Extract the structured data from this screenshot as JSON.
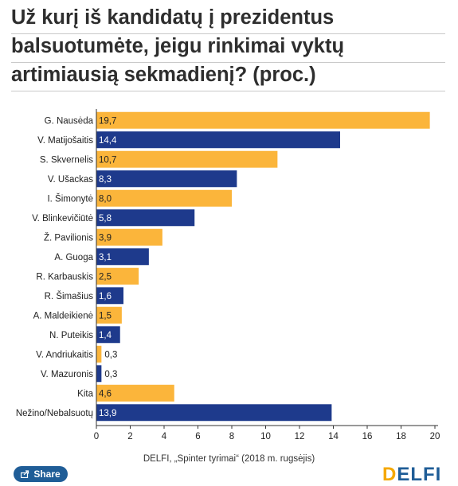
{
  "title_lines": [
    "Už kurį iš kandidatų į prezidentus",
    "balsuotumėte, jeigu rinkimai vyktų",
    "artimiausią sekmadienį? (proc.)"
  ],
  "source": "DELFI, „Spinter tyrimai“ (2018 m. rugsėjis)",
  "share_label": "Share",
  "logo": {
    "first": "D",
    "rest": "ELFI"
  },
  "colors": {
    "orange": "#fbb53b",
    "blue": "#1e3a8c"
  },
  "chart_data": {
    "type": "bar",
    "orientation": "horizontal",
    "categories": [
      "G. Nausėda",
      "V. Matijošaitis",
      "S. Skvernelis",
      "V. Ušackas",
      "I. Šimonytė",
      "V. Blinkevičiūtė",
      "Ž. Pavilionis",
      "A. Guoga",
      "R. Karbauskis",
      "R. Šimašius",
      "A. Maldeikienė",
      "N. Puteikis",
      "V. Andriukaitis",
      "V. Mazuronis",
      "Kita",
      "Nežino/Nebalsuotų"
    ],
    "values": [
      19.7,
      14.4,
      10.7,
      8.3,
      8.0,
      5.8,
      3.9,
      3.1,
      2.5,
      1.6,
      1.5,
      1.4,
      0.3,
      0.3,
      4.6,
      13.9
    ],
    "value_labels": [
      "19,7",
      "14,4",
      "10,7",
      "8,3",
      "8,0",
      "5,8",
      "3,9",
      "3,1",
      "2,5",
      "1,6",
      "1,5",
      "1,4",
      "0,3",
      "0,3",
      "4,6",
      "13,9"
    ],
    "bar_colors": [
      "orange",
      "blue",
      "orange",
      "blue",
      "orange",
      "blue",
      "orange",
      "blue",
      "orange",
      "blue",
      "orange",
      "blue",
      "orange",
      "blue",
      "orange",
      "blue"
    ],
    "xlim": [
      0,
      20
    ],
    "xticks": [
      0,
      2,
      4,
      6,
      8,
      10,
      12,
      14,
      16,
      18,
      20
    ],
    "grid": false,
    "xlabel": "",
    "ylabel": ""
  }
}
